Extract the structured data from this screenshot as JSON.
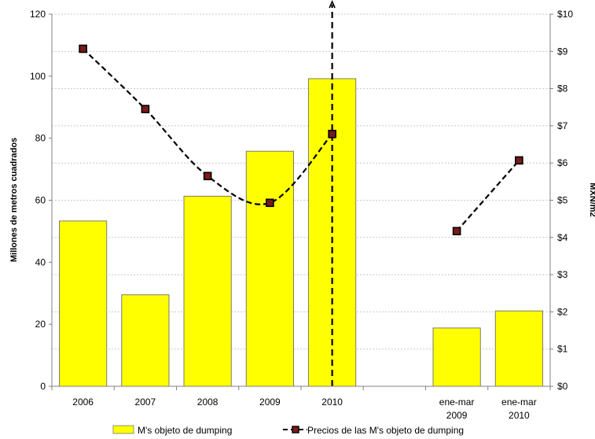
{
  "chart_data": {
    "type": "bar",
    "categories": [
      "2006",
      "2007",
      "2008",
      "2009",
      "2010",
      "",
      "ene-mar 2009",
      "ene-mar 2010"
    ],
    "category_labels": [
      [
        "2006"
      ],
      [
        "2007"
      ],
      [
        "2008"
      ],
      [
        "2009"
      ],
      [
        "2010"
      ],
      [],
      [
        "ene-mar",
        "2009"
      ],
      [
        "ene-mar",
        "2010"
      ]
    ],
    "series": [
      {
        "name": "M's objeto de dumping",
        "type": "bar",
        "axis": "left",
        "color": "#ffff00",
        "values": [
          53.3,
          29.5,
          61.3,
          75.8,
          99.2,
          null,
          18.8,
          24.3
        ]
      },
      {
        "name": "Precios de las M's objeto de dumping",
        "type": "line",
        "axis": "right",
        "color": "#000000",
        "marker_color": "#7b1a1a",
        "style": "dashed",
        "values": [
          9.07,
          7.45,
          5.65,
          4.93,
          6.78,
          null,
          4.17,
          6.07
        ],
        "segments": [
          [
            0,
            4
          ],
          [
            6,
            7
          ]
        ]
      }
    ],
    "ylabel": "Millones de metros cuadrados",
    "y2label": "MXN/m2",
    "ylim": [
      0,
      120
    ],
    "y2lim": [
      0,
      10
    ],
    "yticks": [
      "0",
      "20",
      "40",
      "60",
      "80",
      "100",
      "120"
    ],
    "y2ticks": [
      "$0",
      "$1",
      "$2",
      "$3",
      "$4",
      "$5",
      "$6",
      "$7",
      "$8",
      "$9",
      "$10"
    ],
    "separator": {
      "style": "dashed",
      "arrow": "up",
      "after_category_index": 5
    },
    "grid": true,
    "legend": {
      "position": "bottom",
      "entries": [
        "M's objeto de dumping",
        "Precios de las M's objeto de dumping"
      ]
    }
  }
}
